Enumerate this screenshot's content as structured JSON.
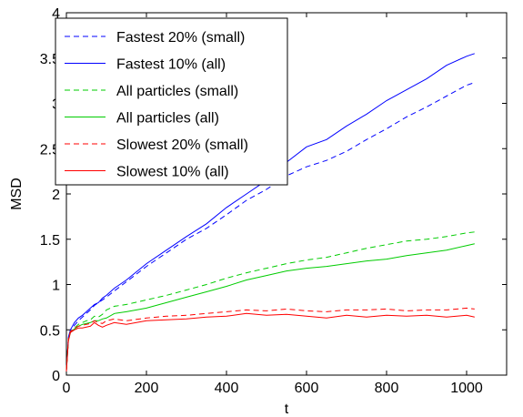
{
  "chart_data": {
    "type": "line",
    "xlabel": "t",
    "ylabel": "MSD",
    "xlim": [
      0,
      1100
    ],
    "ylim": [
      0,
      4
    ],
    "xticks": [
      0,
      200,
      400,
      600,
      800,
      1000
    ],
    "yticks": [
      0,
      0.5,
      1,
      1.5,
      2,
      2.5,
      3,
      3.5,
      4
    ],
    "xtick_labels": [
      "0",
      "200",
      "400",
      "600",
      "800",
      "1000"
    ],
    "ytick_labels": [
      "0",
      "0.5",
      "1",
      "1.5",
      "2",
      "2.5",
      "3",
      "3.5",
      "4"
    ],
    "grid": false,
    "legend_position": "top-left",
    "series": [
      {
        "name": "Fastest 20% (small)",
        "color": "#0000ff",
        "dash": "dashed",
        "x": [
          0,
          5,
          10,
          20,
          30,
          40,
          50,
          60,
          70,
          80,
          90,
          100,
          120,
          150,
          200,
          250,
          300,
          350,
          400,
          450,
          500,
          550,
          600,
          650,
          700,
          750,
          800,
          850,
          900,
          950,
          1000,
          1020
        ],
        "y": [
          0.05,
          0.4,
          0.47,
          0.55,
          0.6,
          0.64,
          0.68,
          0.72,
          0.77,
          0.8,
          0.83,
          0.86,
          0.93,
          1.03,
          1.2,
          1.35,
          1.5,
          1.62,
          1.77,
          1.93,
          2.05,
          2.2,
          2.3,
          2.37,
          2.47,
          2.6,
          2.72,
          2.85,
          2.96,
          3.08,
          3.2,
          3.23
        ]
      },
      {
        "name": "Fastest 10% (all)",
        "color": "#0000ff",
        "dash": "solid",
        "x": [
          0,
          5,
          10,
          20,
          30,
          40,
          50,
          60,
          70,
          80,
          90,
          100,
          120,
          150,
          200,
          250,
          300,
          350,
          400,
          450,
          500,
          550,
          600,
          650,
          700,
          750,
          800,
          850,
          900,
          950,
          1000,
          1020
        ],
        "y": [
          0.05,
          0.42,
          0.5,
          0.58,
          0.63,
          0.66,
          0.7,
          0.74,
          0.78,
          0.8,
          0.85,
          0.88,
          0.96,
          1.05,
          1.23,
          1.38,
          1.53,
          1.67,
          1.85,
          2.0,
          2.15,
          2.35,
          2.52,
          2.6,
          2.75,
          2.88,
          3.03,
          3.15,
          3.27,
          3.42,
          3.52,
          3.55
        ]
      },
      {
        "name": "All particles (small)",
        "color": "#00cc00",
        "dash": "dashed",
        "x": [
          0,
          5,
          10,
          20,
          30,
          40,
          50,
          60,
          70,
          80,
          90,
          100,
          120,
          150,
          200,
          250,
          300,
          350,
          400,
          450,
          500,
          550,
          600,
          650,
          700,
          750,
          800,
          850,
          900,
          950,
          1000,
          1020
        ],
        "y": [
          0.05,
          0.4,
          0.48,
          0.52,
          0.56,
          0.58,
          0.6,
          0.61,
          0.65,
          0.64,
          0.67,
          0.72,
          0.76,
          0.78,
          0.83,
          0.88,
          0.94,
          1.0,
          1.07,
          1.13,
          1.18,
          1.23,
          1.27,
          1.3,
          1.35,
          1.4,
          1.44,
          1.48,
          1.5,
          1.53,
          1.57,
          1.58
        ]
      },
      {
        "name": "All particles (all)",
        "color": "#00cc00",
        "dash": "solid",
        "x": [
          0,
          5,
          10,
          20,
          30,
          40,
          50,
          60,
          70,
          80,
          90,
          100,
          120,
          150,
          200,
          250,
          300,
          350,
          400,
          450,
          500,
          550,
          600,
          650,
          700,
          750,
          800,
          850,
          900,
          950,
          1000,
          1020
        ],
        "y": [
          0.05,
          0.38,
          0.47,
          0.51,
          0.54,
          0.56,
          0.57,
          0.58,
          0.6,
          0.6,
          0.62,
          0.63,
          0.68,
          0.7,
          0.74,
          0.8,
          0.86,
          0.92,
          0.98,
          1.05,
          1.1,
          1.15,
          1.18,
          1.2,
          1.23,
          1.26,
          1.28,
          1.32,
          1.35,
          1.38,
          1.43,
          1.45
        ]
      },
      {
        "name": "Slowest 20% (small)",
        "color": "#ff0000",
        "dash": "dashed",
        "x": [
          0,
          5,
          10,
          20,
          30,
          40,
          50,
          60,
          70,
          80,
          90,
          100,
          120,
          150,
          200,
          250,
          300,
          350,
          400,
          450,
          500,
          550,
          600,
          650,
          700,
          750,
          800,
          850,
          900,
          950,
          1000,
          1020
        ],
        "y": [
          0.05,
          0.4,
          0.48,
          0.52,
          0.54,
          0.55,
          0.56,
          0.57,
          0.6,
          0.58,
          0.57,
          0.6,
          0.62,
          0.6,
          0.63,
          0.65,
          0.66,
          0.68,
          0.7,
          0.72,
          0.71,
          0.73,
          0.71,
          0.7,
          0.72,
          0.72,
          0.73,
          0.71,
          0.72,
          0.72,
          0.74,
          0.73
        ]
      },
      {
        "name": "Slowest 10% (all)",
        "color": "#ff0000",
        "dash": "solid",
        "x": [
          0,
          5,
          10,
          20,
          30,
          40,
          50,
          60,
          70,
          80,
          90,
          100,
          120,
          150,
          200,
          250,
          300,
          350,
          400,
          450,
          500,
          550,
          600,
          650,
          700,
          750,
          800,
          850,
          900,
          950,
          1000,
          1020
        ],
        "y": [
          0.04,
          0.38,
          0.47,
          0.5,
          0.52,
          0.52,
          0.53,
          0.54,
          0.58,
          0.55,
          0.53,
          0.55,
          0.58,
          0.56,
          0.6,
          0.61,
          0.62,
          0.64,
          0.65,
          0.68,
          0.66,
          0.67,
          0.65,
          0.63,
          0.66,
          0.64,
          0.66,
          0.65,
          0.66,
          0.64,
          0.66,
          0.64
        ]
      }
    ]
  }
}
